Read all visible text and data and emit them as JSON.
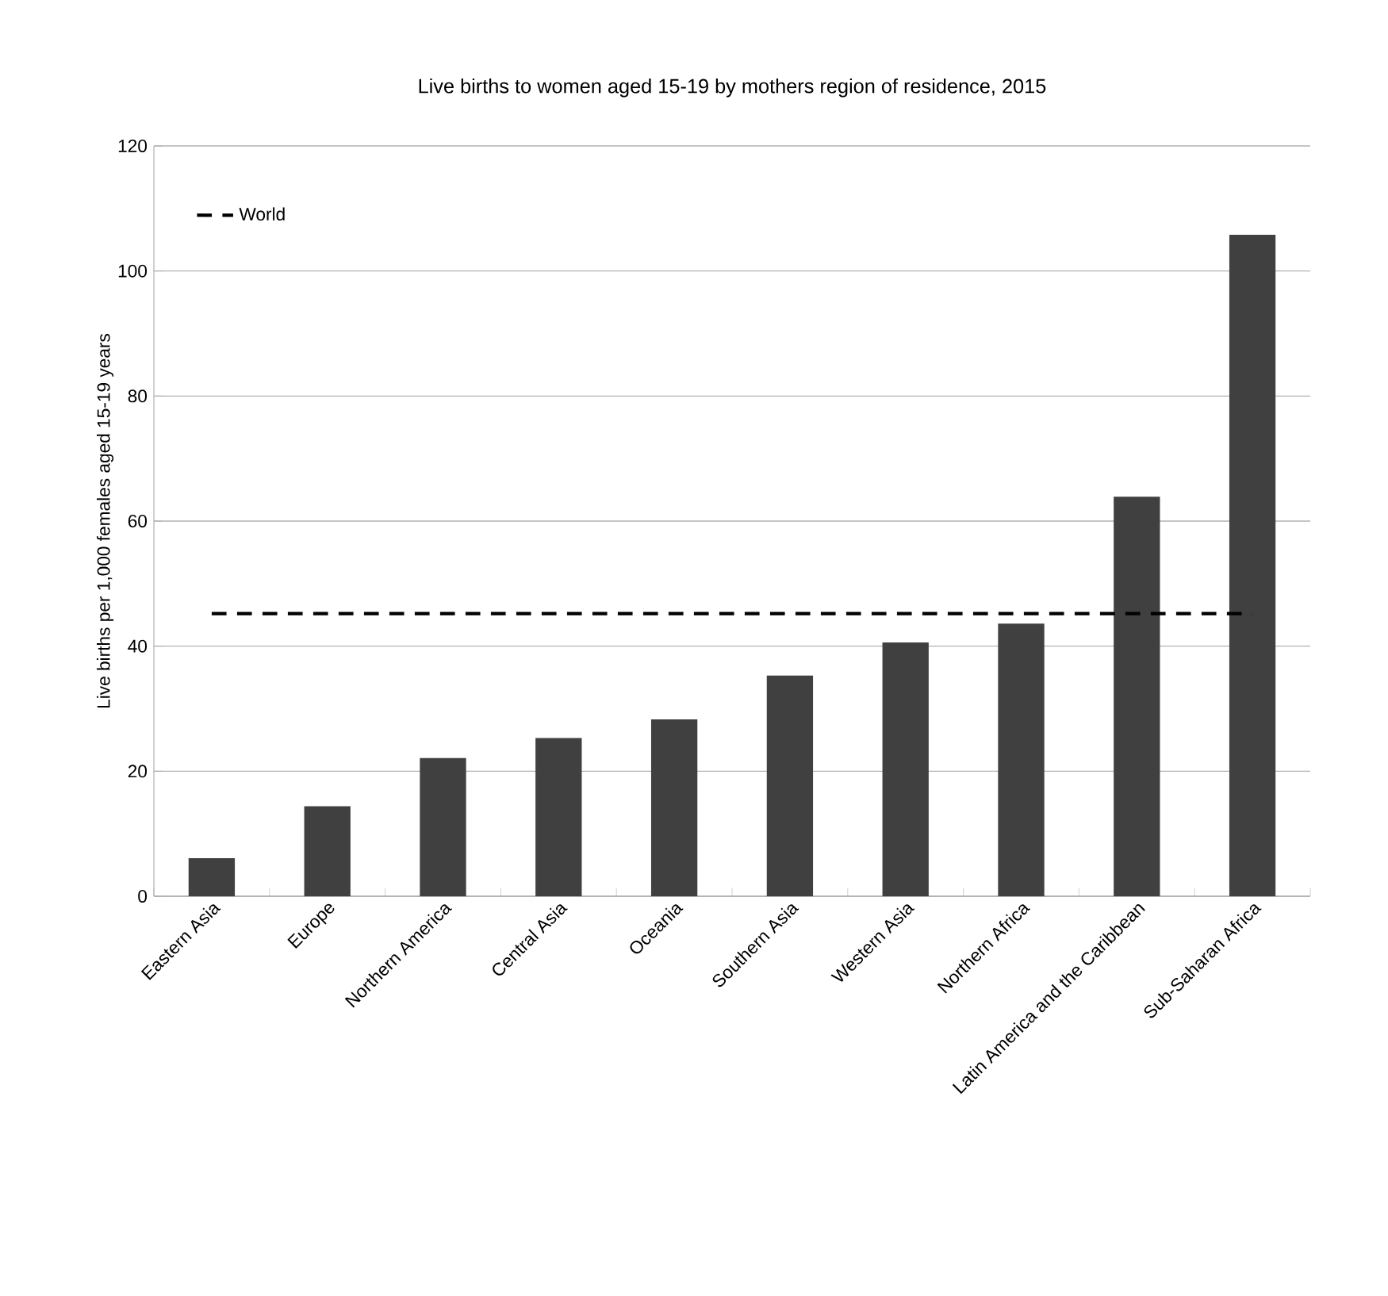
{
  "chart_data": {
    "type": "bar",
    "title": "Live births to women aged 15-19 by mothers region of residence, 2015",
    "ylabel": "Live births per 1,000 females aged 15-19 years",
    "categories": [
      "Eastern Asia",
      "Europe",
      "Northern America",
      "Central Asia",
      "Oceania",
      "Southern Asia",
      "Western Asia",
      "Northern Africa",
      "Latin America and the Caribbean",
      "Sub-Saharan Africa"
    ],
    "series": [
      {
        "color": "#404040",
        "values": [
          6.1,
          14.4,
          22.1,
          25.3,
          28.3,
          35.3,
          40.6,
          43.6,
          63.9,
          105.8
        ]
      },
      {
        "type": "line",
        "name": "World",
        "color": "#000000",
        "line_style": "dashed",
        "values": [
          45.2,
          45.2,
          45.2,
          45.2,
          45.2,
          45.2,
          45.2,
          45.2,
          45.2,
          45.2
        ]
      }
    ],
    "ylim": [
      0,
      120
    ],
    "yticks": [
      0,
      20,
      40,
      60,
      80,
      100,
      120
    ],
    "grid": "y",
    "legend": "top left"
  }
}
